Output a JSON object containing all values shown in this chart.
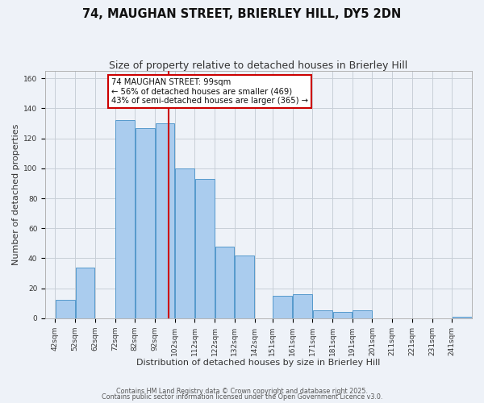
{
  "title": "74, MAUGHAN STREET, BRIERLEY HILL, DY5 2DN",
  "subtitle": "Size of property relative to detached houses in Brierley Hill",
  "xlabel": "Distribution of detached houses by size in Brierley Hill",
  "ylabel": "Number of detached properties",
  "bin_labels": [
    "42sqm",
    "52sqm",
    "62sqm",
    "72sqm",
    "82sqm",
    "92sqm",
    "102sqm",
    "112sqm",
    "122sqm",
    "132sqm",
    "142sqm",
    "151sqm",
    "161sqm",
    "171sqm",
    "181sqm",
    "191sqm",
    "201sqm",
    "211sqm",
    "221sqm",
    "231sqm",
    "241sqm"
  ],
  "bin_edges": [
    42,
    52,
    62,
    72,
    82,
    92,
    102,
    112,
    122,
    132,
    142,
    151,
    161,
    171,
    181,
    191,
    201,
    211,
    221,
    231,
    241
  ],
  "bar_heights": [
    12,
    34,
    0,
    132,
    127,
    130,
    100,
    93,
    48,
    42,
    0,
    15,
    16,
    5,
    4,
    5,
    0,
    0,
    0,
    0,
    1
  ],
  "bar_color": "#aaccee",
  "bar_edge_color": "#5599cc",
  "property_size": 99,
  "red_line_x": 99,
  "annotation_title": "74 MAUGHAN STREET: 99sqm",
  "annotation_line1": "← 56% of detached houses are smaller (469)",
  "annotation_line2": "43% of semi-detached houses are larger (365) →",
  "footnote1": "Contains HM Land Registry data © Crown copyright and database right 2025.",
  "footnote2": "Contains public sector information licensed under the Open Government Licence v3.0.",
  "ylim": [
    0,
    165
  ],
  "yticks": [
    0,
    20,
    40,
    60,
    80,
    100,
    120,
    140,
    160
  ],
  "background_color": "#eef2f8",
  "grid_color": "#c8cfd8",
  "title_fontsize": 10.5,
  "subtitle_fontsize": 9,
  "axis_label_fontsize": 8,
  "tick_fontsize": 6.5
}
